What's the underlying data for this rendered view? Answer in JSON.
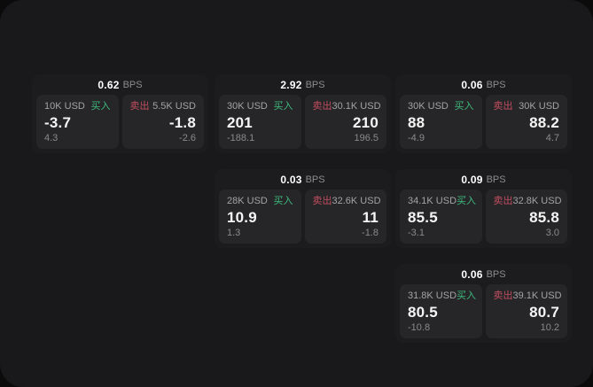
{
  "colors": {
    "buy_green": "#3eb97d",
    "sell_red": "#c24d5f",
    "window_bg": "#19191b",
    "card_bg": "#1c1c1e",
    "panel_bg": "#262628"
  },
  "cards": [
    {
      "bps": "0.62",
      "unit": "BPS",
      "buy": {
        "amount": "10K USD",
        "label": "买入",
        "value": "-3.7",
        "change": "4.3"
      },
      "sell": {
        "label": "卖出",
        "amount": "5.5K USD",
        "value": "-1.8",
        "change": "-2.6"
      }
    },
    {
      "bps": "2.92",
      "unit": "BPS",
      "buy": {
        "amount": "30K USD",
        "label": "买入",
        "value": "201",
        "change": "-188.1"
      },
      "sell": {
        "label": "卖出",
        "amount": "30.1K USD",
        "value": "210",
        "change": "196.5"
      }
    },
    {
      "bps": "0.06",
      "unit": "BPS",
      "buy": {
        "amount": "30K USD",
        "label": "买入",
        "value": "88",
        "change": "-4.9"
      },
      "sell": {
        "label": "卖出",
        "amount": "30K USD",
        "value": "88.2",
        "change": "4.7"
      }
    },
    {
      "bps": "0.03",
      "unit": "BPS",
      "buy": {
        "amount": "28K USD",
        "label": "买入",
        "value": "10.9",
        "change": "1.3"
      },
      "sell": {
        "label": "卖出",
        "amount": "32.6K USD",
        "value": "11",
        "change": "-1.8"
      }
    },
    {
      "bps": "0.09",
      "unit": "BPS",
      "buy": {
        "amount": "34.1K USD",
        "label": "买入",
        "value": "85.5",
        "change": "-3.1"
      },
      "sell": {
        "label": "卖出",
        "amount": "32.8K USD",
        "value": "85.8",
        "change": "3.0"
      }
    },
    {
      "bps": "0.06",
      "unit": "BPS",
      "buy": {
        "amount": "31.8K USD",
        "label": "买入",
        "value": "80.5",
        "change": "-10.8"
      },
      "sell": {
        "label": "卖出",
        "amount": "39.1K USD",
        "value": "80.7",
        "change": "10.2"
      }
    }
  ]
}
